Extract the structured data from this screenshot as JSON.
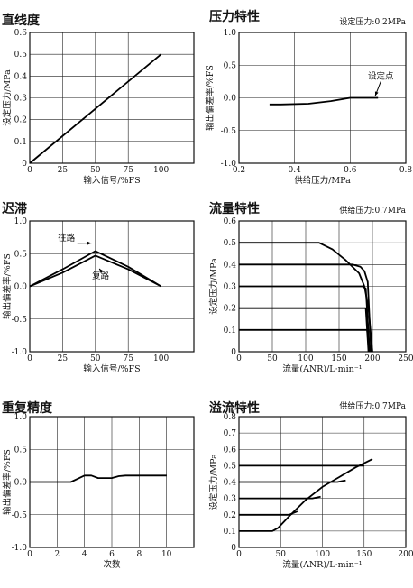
{
  "chart_data": [
    {
      "type": "line",
      "title": "直线度",
      "note": "",
      "xlabel": "输入信号/%FS",
      "ylabel": "设定压力/MPa",
      "xlim": [
        0,
        125
      ],
      "ylim": [
        0,
        0.6
      ],
      "xticks": [
        0,
        25,
        50,
        75,
        100
      ],
      "yticks": [
        0,
        0.1,
        0.2,
        0.3,
        0.4,
        0.5,
        0.6
      ],
      "x_tick_labels": [
        "0",
        "25",
        "50",
        "75",
        "100"
      ],
      "y_tick_labels": [
        "0",
        "0.1",
        "0.2",
        "0.3",
        "0.4",
        "0.5",
        "0.6"
      ],
      "grid": true,
      "series": [
        {
          "x": [
            0,
            100
          ],
          "y": [
            0,
            0.5
          ]
        }
      ],
      "annotations": []
    },
    {
      "type": "line",
      "title": "压力特性",
      "note": "设定压力:0.2MPa",
      "xlabel": "供给压力/MPa",
      "ylabel": "输出偏差率/%FS",
      "xlim": [
        0.2,
        0.8
      ],
      "ylim": [
        -1.0,
        1.0
      ],
      "xticks": [
        0.2,
        0.4,
        0.6,
        0.8
      ],
      "yticks": [
        -1.0,
        -0.5,
        0,
        0.5,
        1.0
      ],
      "x_tick_labels": [
        "0.2",
        "0.4",
        "0.6",
        "0.8"
      ],
      "y_tick_labels": [
        "-1.0",
        "-0.5",
        "0.0",
        "0.5",
        "1.0"
      ],
      "grid": true,
      "series": [
        {
          "x": [
            0.31,
            0.35,
            0.45,
            0.53,
            0.6,
            0.7
          ],
          "y": [
            -0.1,
            -0.1,
            -0.09,
            -0.05,
            0.0,
            0.0
          ]
        }
      ],
      "annotations": [
        {
          "text": "设定点",
          "x": 0.71,
          "y": 0.29,
          "arrow_to": [
            0.69,
            0.03
          ]
        }
      ]
    },
    {
      "type": "line",
      "title": "迟滞",
      "note": "",
      "xlabel": "输入信号/%FS",
      "ylabel": "输出偏差率/%FS",
      "xlim": [
        0,
        125
      ],
      "ylim": [
        -1.0,
        1.0
      ],
      "xticks": [
        0,
        25,
        50,
        75,
        100
      ],
      "yticks": [
        -1.0,
        -0.5,
        0,
        0.5,
        1.0
      ],
      "x_tick_labels": [
        "0",
        "25",
        "50",
        "75",
        "100"
      ],
      "y_tick_labels": [
        "-1.0",
        "-0.5",
        "0.0",
        "0.5",
        "1.0"
      ],
      "grid": true,
      "series": [
        {
          "x": [
            0,
            25,
            50,
            75,
            100
          ],
          "y": [
            0,
            0.26,
            0.54,
            0.3,
            0
          ]
        },
        {
          "x": [
            0,
            25,
            50,
            75,
            100
          ],
          "y": [
            0,
            0.21,
            0.47,
            0.26,
            0
          ]
        }
      ],
      "annotations": [
        {
          "text": "往路",
          "x": 28,
          "y": 0.7,
          "arrow_to": [
            47,
            0.66
          ]
        },
        {
          "text": "复路",
          "x": 54,
          "y": 0.12,
          "arrow_to": [
            53,
            0.27
          ]
        }
      ]
    },
    {
      "type": "line",
      "title": "流量特性",
      "note": "供给压力:0.7MPa",
      "xlabel": "流量(ANR)/L·min⁻¹",
      "ylabel": "设定压力/MPa",
      "xlim": [
        0,
        250
      ],
      "ylim": [
        0,
        0.6
      ],
      "xticks": [
        0,
        50,
        100,
        150,
        200,
        250
      ],
      "yticks": [
        0,
        0.1,
        0.2,
        0.3,
        0.4,
        0.5,
        0.6
      ],
      "x_tick_labels": [
        "0",
        "50",
        "100",
        "150",
        "200",
        "250"
      ],
      "y_tick_labels": [
        "0",
        "0.1",
        "0.2",
        "0.3",
        "0.4",
        "0.5",
        "0.6"
      ],
      "grid": true,
      "series": [
        {
          "x": [
            0,
            120,
            140,
            160,
            180,
            188,
            194,
            200
          ],
          "y": [
            0.5,
            0.5,
            0.47,
            0.42,
            0.36,
            0.3,
            0.2,
            0.0
          ]
        },
        {
          "x": [
            0,
            170,
            182,
            188,
            193,
            198
          ],
          "y": [
            0.4,
            0.4,
            0.39,
            0.37,
            0.32,
            0.0
          ]
        },
        {
          "x": [
            0,
            172,
            185,
            190,
            196
          ],
          "y": [
            0.3,
            0.3,
            0.3,
            0.29,
            0.0
          ]
        },
        {
          "x": [
            0,
            180,
            190,
            194
          ],
          "y": [
            0.2,
            0.2,
            0.2,
            0.0
          ]
        },
        {
          "x": [
            0,
            185,
            192,
            195
          ],
          "y": [
            0.1,
            0.1,
            0.1,
            0.0
          ]
        }
      ],
      "annotations": []
    },
    {
      "type": "line",
      "title": "重复精度",
      "note": "",
      "xlabel": "次数",
      "ylabel": "输出偏差率/%FS",
      "xlim": [
        0,
        12
      ],
      "ylim": [
        -1.0,
        1.0
      ],
      "xticks": [
        0,
        2,
        4,
        6,
        8,
        10
      ],
      "yticks": [
        -1.0,
        -0.5,
        0,
        0.5,
        1.0
      ],
      "x_tick_labels": [
        "0",
        "2",
        "4",
        "6",
        "8",
        "10"
      ],
      "y_tick_labels": [
        "-1.0",
        "-0.5",
        "0.0",
        "0.5",
        "1.0"
      ],
      "grid": true,
      "series": [
        {
          "x": [
            0,
            3.0,
            3.5,
            4.0,
            4.5,
            5.0,
            6.0,
            6.5,
            7.0,
            8.0,
            10.0
          ],
          "y": [
            0,
            0,
            0.05,
            0.1,
            0.1,
            0.06,
            0.06,
            0.09,
            0.1,
            0.1,
            0.1
          ]
        }
      ],
      "annotations": []
    },
    {
      "type": "line",
      "title": "溢流特性",
      "note": "供给压力:0.7MPa",
      "xlabel": "流量(ANR)/L·min⁻¹",
      "ylabel": "设定压力/MPa",
      "xlim": [
        0,
        200
      ],
      "ylim": [
        0,
        0.8
      ],
      "xticks": [
        0,
        50,
        100,
        150,
        200
      ],
      "yticks": [
        0,
        0.1,
        0.2,
        0.3,
        0.4,
        0.5,
        0.6,
        0.7,
        0.8
      ],
      "x_tick_labels": [
        "0",
        "50",
        "100",
        "150",
        "200"
      ],
      "y_tick_labels": [
        "0",
        "0.1",
        "0.2",
        "0.3",
        "0.4",
        "0.5",
        "0.6",
        "0.7",
        "0.8"
      ],
      "grid": true,
      "series": [
        {
          "x": [
            0,
            40,
            47,
            60,
            80,
            100,
            120,
            140,
            160
          ],
          "y": [
            0.1,
            0.1,
            0.12,
            0.19,
            0.29,
            0.37,
            0.43,
            0.49,
            0.54
          ]
        },
        {
          "x": [
            0,
            60,
            70
          ],
          "y": [
            0.2,
            0.2,
            0.22
          ]
        },
        {
          "x": [
            0,
            88,
            98
          ],
          "y": [
            0.3,
            0.3,
            0.31
          ]
        },
        {
          "x": [
            0,
            118,
            128
          ],
          "y": [
            0.4,
            0.4,
            0.41
          ]
        },
        {
          "x": [
            0,
            140,
            150
          ],
          "y": [
            0.5,
            0.5,
            0.5
          ]
        }
      ],
      "annotations": []
    }
  ]
}
